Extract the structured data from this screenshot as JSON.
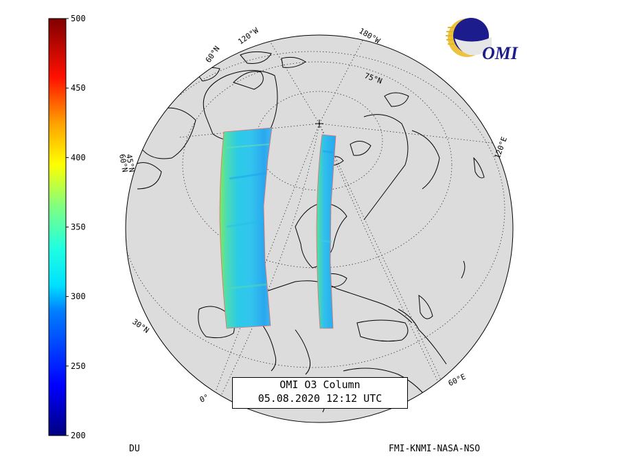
{
  "title": {
    "line1": "OMI O3 Column",
    "line2": "05.08.2020 12:12 UTC"
  },
  "colorbar": {
    "unit": "DU",
    "min": 200,
    "max": 500,
    "ticks": [
      "500",
      "450",
      "400",
      "350",
      "300",
      "250",
      "200"
    ],
    "colors": [
      "#00007f",
      "#0000ff",
      "#0080ff",
      "#00ffff",
      "#80ff80",
      "#ffff00",
      "#ff8000",
      "#ff0000",
      "#7f0000"
    ]
  },
  "credits": "FMI-KNMI-NASA-NSO",
  "logo": {
    "text": "OMI"
  },
  "graticule_labels": {
    "lon_180w": "180°W",
    "lon_120w": "120°W",
    "lat_60n": "60°N",
    "lat_75n": "75°N",
    "lon_120e": "120°E",
    "lat_45n": "45°N",
    "lat_60n_left": "60°N",
    "lat_30n": "30°N",
    "lon_0": "0°",
    "lon_60e": "60°E"
  },
  "map": {
    "globe_color": "#dcdcdc",
    "swath_values_du": "~270-340 (predominantly 290-320)",
    "swath_colors": [
      "#38d6f0",
      "#2bc6f0",
      "#3ee8d8",
      "#1fb0f0"
    ]
  }
}
